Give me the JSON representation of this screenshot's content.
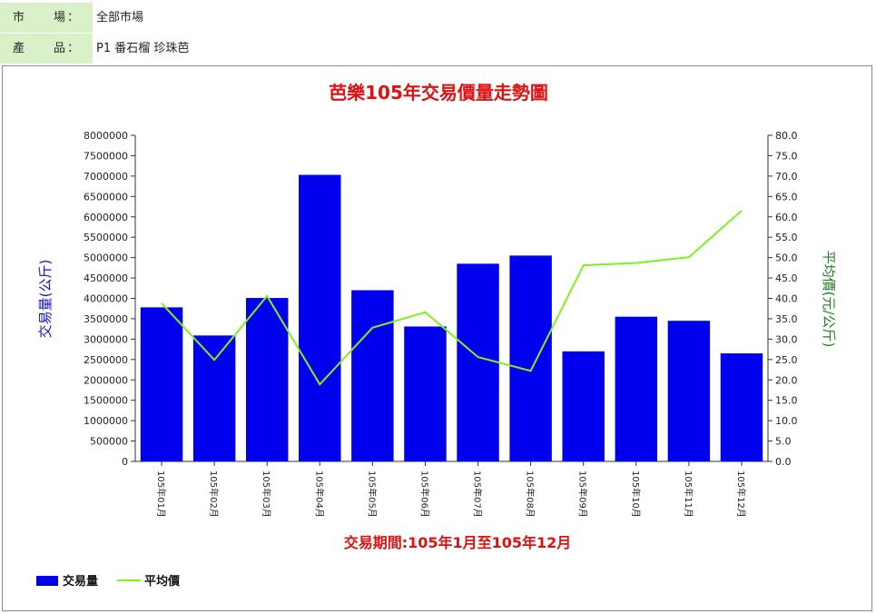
{
  "filters": {
    "market_label": "市　　場：",
    "market_value": "全部市場",
    "product_label": "產　　品：",
    "product_value": "P1 番石榴 珍珠芭"
  },
  "colors": {
    "bar": "#0000ee",
    "line": "#80f020",
    "title": "#e01010",
    "left_axis_label": "#1010cc",
    "right_axis_label": "#208020",
    "label_bg": "#d9f0c8"
  },
  "chart_data": {
    "type": "bar",
    "title": "芭樂105年交易價量走勢圖",
    "xlabel": "交易期間:105年1月至105年12月",
    "ylabel": "交易量(公斤)",
    "y2label": "平均價(元/公斤)",
    "categories": [
      "105年01月",
      "105年02月",
      "105年03月",
      "105年04月",
      "105年05月",
      "105年06月",
      "105年07月",
      "105年08月",
      "105年09月",
      "105年10月",
      "105年11月",
      "105年12月"
    ],
    "ylim": [
      0,
      8000000
    ],
    "y2lim": [
      0,
      80
    ],
    "yticks": [
      "0",
      "500000",
      "1000000",
      "1500000",
      "2000000",
      "2500000",
      "3000000",
      "3500000",
      "4000000",
      "4500000",
      "5000000",
      "5500000",
      "6000000",
      "6500000",
      "7000000",
      "7500000",
      "8000000"
    ],
    "y2ticks": [
      "0.0",
      "5.0",
      "10.0",
      "15.0",
      "20.0",
      "25.0",
      "30.0",
      "35.0",
      "40.0",
      "45.0",
      "50.0",
      "55.0",
      "60.0",
      "65.0",
      "70.0",
      "75.0",
      "80.0"
    ],
    "series": [
      {
        "name": "交易量",
        "type": "bar",
        "axis": "left",
        "values": [
          3780000,
          3090000,
          4010000,
          7030000,
          4200000,
          3310000,
          4850000,
          5050000,
          2700000,
          3550000,
          3450000,
          2650000
        ]
      },
      {
        "name": "平均價",
        "type": "line",
        "axis": "right",
        "values": [
          38.8,
          24.9,
          40.6,
          18.9,
          32.8,
          36.6,
          25.6,
          22.2,
          48.1,
          48.7,
          50.1,
          61.5
        ]
      }
    ],
    "legend": "bottom-left",
    "grid": false
  }
}
